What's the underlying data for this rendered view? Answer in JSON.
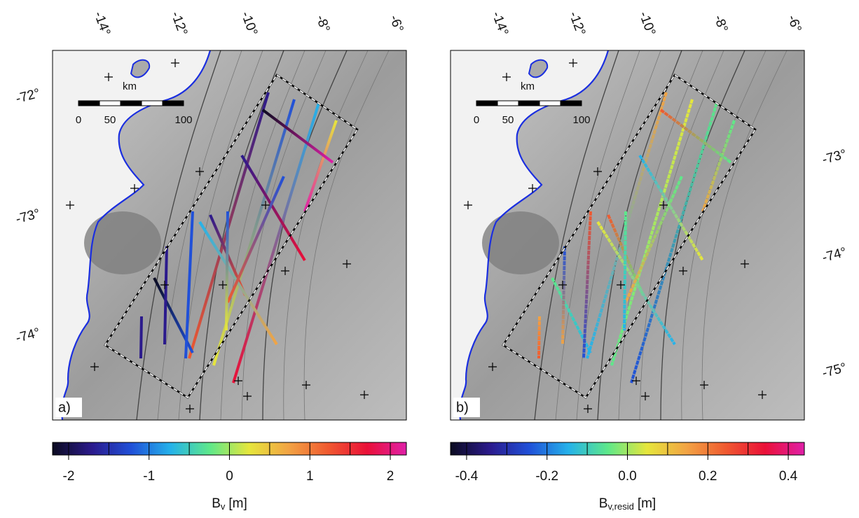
{
  "panels": [
    {
      "label": "a)",
      "lon_labels": [
        "-14°",
        "-12°",
        "-10°",
        "-8°",
        "-6°"
      ],
      "lat_labels": [
        "-72°",
        "-73°",
        "-74°"
      ],
      "scale_bar": {
        "unit": "km",
        "labels": [
          "0",
          "50",
          "100"
        ]
      }
    },
    {
      "label": "b)",
      "lon_labels": [
        "-14°",
        "-12°",
        "-10°",
        "-8°",
        "-6°"
      ],
      "lat_labels": [
        "-73°",
        "-74°",
        "-75°"
      ],
      "scale_bar": {
        "unit": "km",
        "labels": [
          "0",
          "50",
          "100"
        ]
      }
    }
  ],
  "chart_data": [
    {
      "type": "colorbar",
      "xlim": [
        -2.2,
        2.2
      ],
      "xticks": [
        -2,
        -1,
        0,
        1,
        2
      ],
      "color_breaks": [
        -2,
        -1.5,
        -1,
        -0.5,
        0,
        0.5,
        1,
        1.5,
        2
      ],
      "colors": [
        "#0b0b20",
        "#2b1a8c",
        "#2050d8",
        "#25b2ea",
        "#5ee88a",
        "#e6e63c",
        "#f2a444",
        "#f05a30",
        "#ea1038",
        "#e020a8"
      ],
      "title": {
        "symbol": "B",
        "subscript": "v",
        "unit": "[m]"
      }
    },
    {
      "type": "colorbar",
      "xlim": [
        -0.44,
        0.44
      ],
      "xticks": [
        -0.4,
        -0.2,
        {
          "value": 0,
          "label": "0.0"
        },
        0.2,
        0.4
      ],
      "color_breaks": [
        -0.4,
        -0.3,
        -0.2,
        -0.1,
        0,
        0.1,
        0.2,
        0.3,
        0.4
      ],
      "colors": [
        "#0b0b20",
        "#2b1a8c",
        "#2050d8",
        "#25b2ea",
        "#5ee88a",
        "#e6e63c",
        "#f2a444",
        "#f05a30",
        "#ea1038",
        "#e020a8"
      ],
      "title": {
        "symbol": "B",
        "subscript": "v,resid",
        "unit": "[m]"
      }
    }
  ]
}
